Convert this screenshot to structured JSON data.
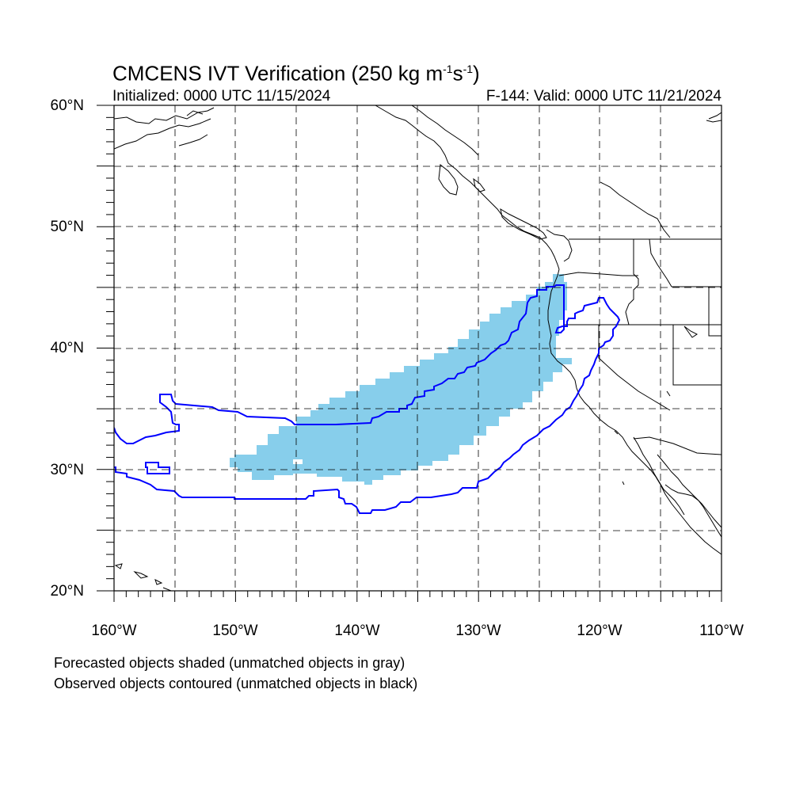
{
  "title": {
    "main": "CMCENS IVT Verification (250 kg m",
    "sup1": "-1",
    "mid": "s",
    "sup2": "-1",
    "end": ")"
  },
  "subtitle_left": "Initialized: 0000 UTC 11/15/2024",
  "subtitle_right": "F-144: Valid: 0000 UTC 11/21/2024",
  "lat_labels": [
    "60°N",
    "50°N",
    "40°N",
    "30°N",
    "20°N"
  ],
  "lon_labels": [
    "160°W",
    "150°W",
    "140°W",
    "130°W",
    "120°W",
    "110°W"
  ],
  "notes": [
    "Forecasted objects shaded (unmatched objects in gray)",
    "Observed objects contoured (unmatched objects in black)"
  ],
  "colors": {
    "forecast_fill": "#87ceeb",
    "observed_contour": "#0000ff",
    "coastline": "#000000",
    "grid": "#000000"
  },
  "map_extent": {
    "lon_min": -160,
    "lon_max": -110,
    "lat_min": 20,
    "lat_max": 60
  },
  "grid_lines": {
    "lon_step": 5,
    "lat_step": 5,
    "style": "dashed"
  }
}
